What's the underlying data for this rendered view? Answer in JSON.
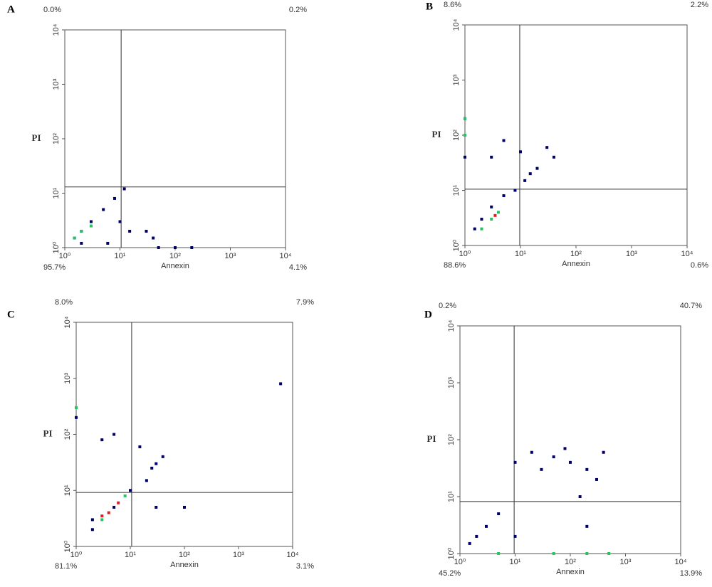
{
  "chart_data": [
    {
      "type": "scatter",
      "panel": "A",
      "xlabel": "Annexin",
      "ylabel": "PI",
      "log_scale": true,
      "xlim": [
        1,
        10000
      ],
      "ylim": [
        1,
        10000
      ],
      "xticks": [
        {
          "value": 1,
          "label": "10⁰"
        },
        {
          "value": 10,
          "label": "10¹"
        },
        {
          "value": 100,
          "label": "10²"
        },
        {
          "value": 1000,
          "label": "10³"
        },
        {
          "value": 10000,
          "label": "10⁴"
        }
      ],
      "yticks": [
        {
          "value": 1,
          "label": "10⁰"
        },
        {
          "value": 10,
          "label": "10¹"
        },
        {
          "value": 100,
          "label": "10²"
        },
        {
          "value": 1000,
          "label": "10³"
        },
        {
          "value": 10000,
          "label": "10⁴"
        }
      ],
      "gate": {
        "x": 10.5,
        "y": 13
      },
      "quadrant_labels": [
        "0.0%",
        "0.2%",
        "95.7%",
        "4.1%"
      ],
      "series": [
        {
          "color": "#000066",
          "x": [
            1.5,
            2,
            3,
            5,
            8,
            12,
            10,
            15,
            40,
            50,
            100,
            200,
            30,
            6,
            2
          ],
          "values": [
            1.5,
            2,
            3,
            5,
            8,
            12,
            3,
            2,
            1.5,
            1,
            1,
            1,
            2,
            1.2,
            1.2
          ]
        },
        {
          "color": "#22c55e",
          "x": [
            1.5,
            2,
            3
          ],
          "values": [
            1.5,
            2,
            2.5
          ]
        }
      ]
    },
    {
      "type": "scatter",
      "panel": "B",
      "xlabel": "Annexin",
      "ylabel": "PI",
      "log_scale": true,
      "xlim": [
        1,
        10000
      ],
      "ylim": [
        1,
        10000
      ],
      "xticks": [
        {
          "value": 1,
          "label": "10⁰"
        },
        {
          "value": 10,
          "label": "10¹"
        },
        {
          "value": 100,
          "label": "10²"
        },
        {
          "value": 1000,
          "label": "10³"
        },
        {
          "value": 10000,
          "label": "10⁴"
        }
      ],
      "yticks": [
        {
          "value": 1,
          "label": "10⁰"
        },
        {
          "value": 10,
          "label": "10¹"
        },
        {
          "value": 100,
          "label": "10²"
        },
        {
          "value": 1000,
          "label": "10³"
        },
        {
          "value": 10000,
          "label": "10⁴"
        }
      ],
      "gate": {
        "x": 9.7,
        "y": 10.5
      },
      "quadrant_labels": [
        "8.6%",
        "2.2%",
        "88.6%",
        "0.6%"
      ],
      "series": [
        {
          "color": "#000066",
          "x": [
            1.5,
            2,
            3,
            5,
            8,
            12,
            20,
            40,
            5,
            10,
            30,
            1,
            1,
            1,
            3,
            15
          ],
          "values": [
            2,
            3,
            5,
            8,
            10,
            15,
            25,
            40,
            80,
            50,
            60,
            200,
            100,
            40,
            40,
            20
          ]
        },
        {
          "color": "#22c55e",
          "x": [
            2,
            3,
            4,
            1,
            1
          ],
          "values": [
            2,
            3,
            4,
            100,
            200
          ]
        },
        {
          "color": "#e02020",
          "x": [
            3.5
          ],
          "values": [
            3.5
          ]
        }
      ]
    },
    {
      "type": "scatter",
      "panel": "C",
      "xlabel": "Annexin",
      "ylabel": "PI",
      "log_scale": true,
      "xlim": [
        1,
        10000
      ],
      "ylim": [
        1,
        10000
      ],
      "xticks": [
        {
          "value": 1,
          "label": "10⁰"
        },
        {
          "value": 10,
          "label": "10¹"
        },
        {
          "value": 100,
          "label": "10²"
        },
        {
          "value": 1000,
          "label": "10³"
        },
        {
          "value": 10000,
          "label": "10⁴"
        }
      ],
      "yticks": [
        {
          "value": 1,
          "label": "10⁰"
        },
        {
          "value": 10,
          "label": "10¹"
        },
        {
          "value": 100,
          "label": "10²"
        },
        {
          "value": 1000,
          "label": "10³"
        },
        {
          "value": 10000,
          "label": "10⁴"
        }
      ],
      "gate": {
        "x": 10.6,
        "y": 9.2
      },
      "quadrant_labels": [
        "8.0%",
        "7.9%",
        "81.1%",
        "3.1%"
      ],
      "series": [
        {
          "color": "#000066",
          "x": [
            2,
            5,
            10,
            20,
            30,
            3,
            5,
            15,
            25,
            30,
            100,
            6000,
            1,
            2,
            40
          ],
          "values": [
            2,
            5,
            10,
            15,
            30,
            80,
            100,
            60,
            25,
            5,
            5,
            800,
            200,
            3,
            40
          ]
        },
        {
          "color": "#22c55e",
          "x": [
            3,
            8,
            1
          ],
          "values": [
            3,
            8,
            300
          ]
        },
        {
          "color": "#e02020",
          "x": [
            4,
            6,
            3
          ],
          "values": [
            4,
            6,
            3.5
          ]
        }
      ]
    },
    {
      "type": "scatter",
      "panel": "D",
      "xlabel": "Annexin",
      "ylabel": "PI",
      "log_scale": true,
      "xlim": [
        1,
        10000
      ],
      "ylim": [
        1,
        10000
      ],
      "xticks": [
        {
          "value": 1,
          "label": "10⁰"
        },
        {
          "value": 10,
          "label": "10¹"
        },
        {
          "value": 100,
          "label": "10²"
        },
        {
          "value": 1000,
          "label": "10³"
        },
        {
          "value": 10000,
          "label": "10⁴"
        }
      ],
      "yticks": [
        {
          "value": 1,
          "label": "10⁰"
        },
        {
          "value": 10,
          "label": "10¹"
        },
        {
          "value": 100,
          "label": "10²"
        },
        {
          "value": 1000,
          "label": "10³"
        },
        {
          "value": 10000,
          "label": "10⁴"
        }
      ],
      "gate": {
        "x": 9.6,
        "y": 8.2
      },
      "quadrant_labels": [
        "0.2%",
        "40.7%",
        "45.2%",
        "13.9%"
      ],
      "series": [
        {
          "color": "#000066",
          "x": [
            1.5,
            2,
            3,
            10,
            20,
            50,
            100,
            200,
            150,
            300,
            30,
            80,
            200,
            10,
            5,
            400
          ],
          "values": [
            1.5,
            2,
            3,
            40,
            60,
            50,
            40,
            30,
            10,
            20,
            30,
            70,
            3,
            2,
            5,
            60
          ]
        },
        {
          "color": "#22c55e",
          "x": [
            5,
            50,
            200,
            500
          ],
          "values": [
            1,
            1,
            1,
            1
          ]
        }
      ]
    }
  ]
}
